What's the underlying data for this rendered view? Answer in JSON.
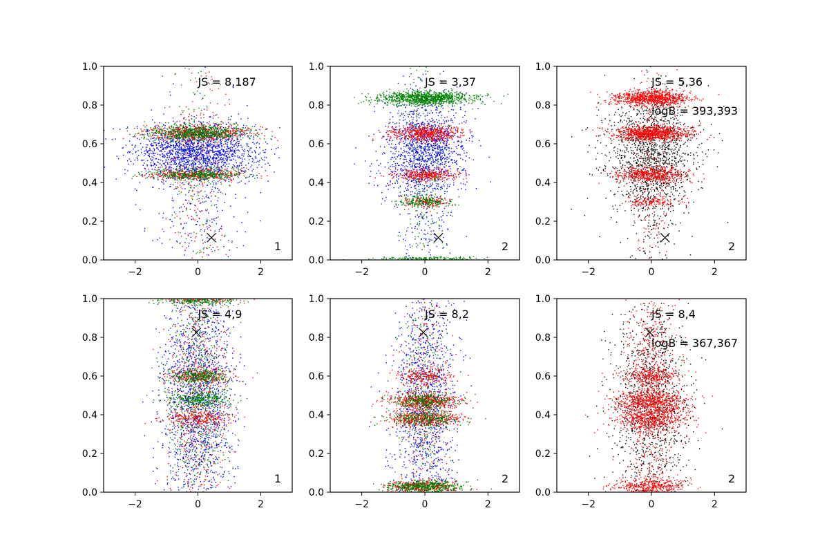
{
  "chart_data": [
    {
      "type": "scatter",
      "panel": "top-left",
      "xlim": [
        -3,
        3
      ],
      "ylim": [
        0,
        1
      ],
      "xticks": [
        -2,
        0,
        2
      ],
      "yticks": [
        0.0,
        0.2,
        0.4,
        0.6,
        0.8,
        1.0
      ],
      "xtick_labels": [
        "−2",
        "0",
        "2"
      ],
      "ytick_labels": [
        "0.0",
        "0.2",
        "0.4",
        "0.6",
        "0.8",
        "1.0"
      ],
      "annotations": [
        "JS = 8,187"
      ],
      "corner_label": "1",
      "marker": {
        "x": 0.43,
        "y": 0.115,
        "symbol": "x"
      },
      "series": [
        {
          "name": "blue",
          "color": "#0000ff",
          "bands": [
            {
              "y": 0.56,
              "sy": 0.07,
              "sx": 1.0,
              "n": 1600
            },
            {
              "y": 0.35,
              "sy": 0.25,
              "sx": 0.8,
              "n": 300
            }
          ]
        },
        {
          "name": "red",
          "color": "#ff0000",
          "bands": [
            {
              "y": 0.655,
              "sy": 0.02,
              "sx": 0.85,
              "n": 550
            },
            {
              "y": 0.44,
              "sy": 0.015,
              "sx": 0.75,
              "n": 350
            },
            {
              "y": 0.5,
              "sy": 0.3,
              "sx": 0.45,
              "n": 220
            }
          ]
        },
        {
          "name": "green",
          "color": "#008000",
          "bands": [
            {
              "y": 0.655,
              "sy": 0.02,
              "sx": 0.85,
              "n": 700
            },
            {
              "y": 0.44,
              "sy": 0.015,
              "sx": 0.75,
              "n": 420
            },
            {
              "y": 0.5,
              "sy": 0.3,
              "sx": 0.45,
              "n": 200
            }
          ]
        }
      ]
    },
    {
      "type": "scatter",
      "panel": "top-middle",
      "xlim": [
        -3,
        3
      ],
      "ylim": [
        0,
        1
      ],
      "xticks": [
        -2,
        0,
        2
      ],
      "yticks": [
        0.0,
        0.2,
        0.4,
        0.6,
        0.8,
        1.0
      ],
      "xtick_labels": [
        "−2",
        "0",
        "2"
      ],
      "ytick_labels": [
        "0.0",
        "0.2",
        "0.4",
        "0.6",
        "0.8",
        "1.0"
      ],
      "annotations": [
        "JS = 3,37"
      ],
      "corner_label": "2",
      "marker": {
        "x": 0.43,
        "y": 0.115,
        "symbol": "x"
      },
      "series": [
        {
          "name": "blue",
          "color": "#0000ff",
          "bands": [
            {
              "y": 0.57,
              "sy": 0.12,
              "sx": 0.65,
              "n": 1100
            },
            {
              "y": 0.4,
              "sy": 0.3,
              "sx": 0.45,
              "n": 350
            }
          ]
        },
        {
          "name": "red",
          "color": "#ff0000",
          "bands": [
            {
              "y": 0.655,
              "sy": 0.02,
              "sx": 0.55,
              "n": 600
            },
            {
              "y": 0.44,
              "sy": 0.015,
              "sx": 0.5,
              "n": 350
            },
            {
              "y": 0.3,
              "sy": 0.015,
              "sx": 0.4,
              "n": 150
            }
          ]
        },
        {
          "name": "green",
          "color": "#008000",
          "bands": [
            {
              "y": 0.835,
              "sy": 0.018,
              "sx": 0.75,
              "n": 1100
            },
            {
              "y": 0.3,
              "sy": 0.015,
              "sx": 0.45,
              "n": 200
            },
            {
              "y": 0.005,
              "sy": 0.006,
              "sx": 0.8,
              "n": 200
            },
            {
              "y": 0.5,
              "sy": 0.35,
              "sx": 0.35,
              "n": 250
            }
          ]
        }
      ]
    },
    {
      "type": "scatter",
      "panel": "top-right",
      "xlim": [
        -3,
        3
      ],
      "ylim": [
        0,
        1
      ],
      "xticks": [
        -2,
        0,
        2
      ],
      "yticks": [
        0.0,
        0.2,
        0.4,
        0.6,
        0.8,
        1.0
      ],
      "xtick_labels": [
        "−2",
        "0",
        "2"
      ],
      "ytick_labels": [
        "0.0",
        "0.2",
        "0.4",
        "0.6",
        "0.8",
        "1.0"
      ],
      "annotations": [
        "JS = 5,36",
        "logB = 393,393"
      ],
      "corner_label": "2",
      "marker": {
        "x": 0.43,
        "y": 0.115,
        "symbol": "x"
      },
      "series": [
        {
          "name": "black",
          "color": "#000000",
          "bands": [
            {
              "y": 0.55,
              "sy": 0.15,
              "sx": 0.75,
              "n": 1200
            },
            {
              "y": 0.35,
              "sy": 0.3,
              "sx": 0.45,
              "n": 300
            }
          ]
        },
        {
          "name": "red",
          "color": "#ff0000",
          "bands": [
            {
              "y": 0.835,
              "sy": 0.02,
              "sx": 0.6,
              "n": 900
            },
            {
              "y": 0.655,
              "sy": 0.02,
              "sx": 0.6,
              "n": 900
            },
            {
              "y": 0.44,
              "sy": 0.02,
              "sx": 0.55,
              "n": 550
            },
            {
              "y": 0.3,
              "sy": 0.015,
              "sx": 0.4,
              "n": 150
            },
            {
              "y": 0.5,
              "sy": 0.35,
              "sx": 0.3,
              "n": 200
            }
          ]
        }
      ]
    },
    {
      "type": "scatter",
      "panel": "bottom-left",
      "xlim": [
        -3,
        3
      ],
      "ylim": [
        0,
        1
      ],
      "xticks": [
        -2,
        0,
        2
      ],
      "yticks": [
        0.0,
        0.2,
        0.4,
        0.6,
        0.8,
        1.0
      ],
      "xtick_labels": [
        "−2",
        "0",
        "2"
      ],
      "ytick_labels": [
        "0.0",
        "0.2",
        "0.4",
        "0.6",
        "0.8",
        "1.0"
      ],
      "annotations": [
        "JS = 4,9"
      ],
      "corner_label": "1",
      "marker": {
        "x": -0.05,
        "y": 0.825,
        "symbol": "x"
      },
      "series": [
        {
          "name": "blue",
          "color": "#0000ff",
          "bands": [
            {
              "y": 0.5,
              "sy": 0.3,
              "sx": 0.55,
              "n": 1500
            }
          ]
        },
        {
          "name": "red",
          "color": "#ff0000",
          "bands": [
            {
              "y": 0.5,
              "sy": 0.3,
              "sx": 0.5,
              "n": 500
            },
            {
              "y": 0.6,
              "sy": 0.02,
              "sx": 0.5,
              "n": 250
            },
            {
              "y": 0.38,
              "sy": 0.02,
              "sx": 0.5,
              "n": 250
            },
            {
              "y": 1.0,
              "sy": 0.01,
              "sx": 0.6,
              "n": 150
            }
          ]
        },
        {
          "name": "green",
          "color": "#008000",
          "bands": [
            {
              "y": 0.5,
              "sy": 0.3,
              "sx": 0.5,
              "n": 600
            },
            {
              "y": 0.6,
              "sy": 0.02,
              "sx": 0.5,
              "n": 300
            },
            {
              "y": 0.48,
              "sy": 0.02,
              "sx": 0.5,
              "n": 300
            },
            {
              "y": 0.99,
              "sy": 0.012,
              "sx": 0.6,
              "n": 250
            }
          ]
        }
      ]
    },
    {
      "type": "scatter",
      "panel": "bottom-middle",
      "xlim": [
        -3,
        3
      ],
      "ylim": [
        0,
        1
      ],
      "xticks": [
        -2,
        0,
        2
      ],
      "yticks": [
        0.0,
        0.2,
        0.4,
        0.6,
        0.8,
        1.0
      ],
      "xtick_labels": [
        "−2",
        "0",
        "2"
      ],
      "ytick_labels": [
        "0.0",
        "0.2",
        "0.4",
        "0.6",
        "0.8",
        "1.0"
      ],
      "annotations": [
        "JS = 8,2"
      ],
      "corner_label": "2",
      "marker": {
        "x": -0.05,
        "y": 0.825,
        "symbol": "x"
      },
      "series": [
        {
          "name": "blue",
          "color": "#0000ff",
          "bands": [
            {
              "y": 0.45,
              "sy": 0.3,
              "sx": 0.5,
              "n": 1100
            }
          ]
        },
        {
          "name": "red",
          "color": "#ff0000",
          "bands": [
            {
              "y": 0.47,
              "sy": 0.02,
              "sx": 0.55,
              "n": 500
            },
            {
              "y": 0.38,
              "sy": 0.02,
              "sx": 0.55,
              "n": 450
            },
            {
              "y": 0.6,
              "sy": 0.02,
              "sx": 0.45,
              "n": 200
            },
            {
              "y": 0.03,
              "sy": 0.015,
              "sx": 0.55,
              "n": 350
            },
            {
              "y": 0.5,
              "sy": 0.3,
              "sx": 0.4,
              "n": 300
            }
          ]
        },
        {
          "name": "green",
          "color": "#008000",
          "bands": [
            {
              "y": 0.47,
              "sy": 0.02,
              "sx": 0.55,
              "n": 300
            },
            {
              "y": 0.38,
              "sy": 0.02,
              "sx": 0.55,
              "n": 300
            },
            {
              "y": 0.03,
              "sy": 0.015,
              "sx": 0.6,
              "n": 500
            },
            {
              "y": 0.5,
              "sy": 0.3,
              "sx": 0.4,
              "n": 250
            }
          ]
        }
      ]
    },
    {
      "type": "scatter",
      "panel": "bottom-right",
      "xlim": [
        -3,
        3
      ],
      "ylim": [
        0,
        1
      ],
      "xticks": [
        -2,
        0,
        2
      ],
      "yticks": [
        0.0,
        0.2,
        0.4,
        0.6,
        0.8,
        1.0
      ],
      "xtick_labels": [
        "−2",
        "0",
        "2"
      ],
      "ytick_labels": [
        "0.0",
        "0.2",
        "0.4",
        "0.6",
        "0.8",
        "1.0"
      ],
      "annotations": [
        "JS = 8,4",
        "logB = 367,367"
      ],
      "corner_label": "2",
      "marker": {
        "x": -0.05,
        "y": 0.825,
        "symbol": "x"
      },
      "series": [
        {
          "name": "black",
          "color": "#000000",
          "bands": [
            {
              "y": 0.45,
              "sy": 0.28,
              "sx": 0.6,
              "n": 1100
            }
          ]
        },
        {
          "name": "red",
          "color": "#ff0000",
          "bands": [
            {
              "y": 0.47,
              "sy": 0.03,
              "sx": 0.6,
              "n": 600
            },
            {
              "y": 0.38,
              "sy": 0.03,
              "sx": 0.6,
              "n": 500
            },
            {
              "y": 0.6,
              "sy": 0.02,
              "sx": 0.45,
              "n": 250
            },
            {
              "y": 0.03,
              "sy": 0.02,
              "sx": 0.55,
              "n": 400
            },
            {
              "y": 0.55,
              "sy": 0.3,
              "sx": 0.4,
              "n": 700
            }
          ]
        }
      ]
    }
  ]
}
